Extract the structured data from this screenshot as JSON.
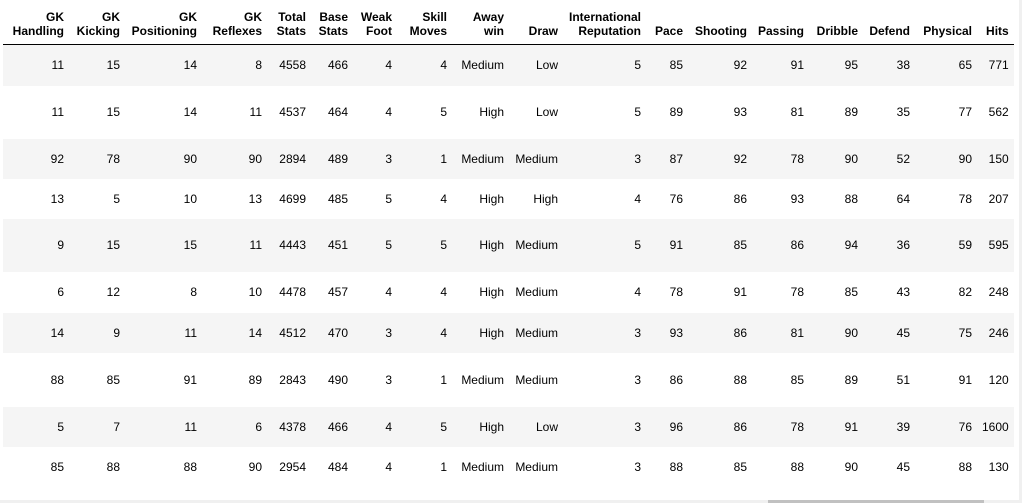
{
  "table": {
    "headers": [
      [
        "GK",
        "Handling"
      ],
      [
        "GK",
        "Kicking"
      ],
      [
        "GK",
        "Positioning"
      ],
      [
        "GK",
        "Reflexes"
      ],
      [
        "Total",
        "Stats"
      ],
      [
        "Base",
        "Stats"
      ],
      [
        "Weak",
        "Foot"
      ],
      [
        "Skill",
        "Moves"
      ],
      [
        "Away",
        "win"
      ],
      [
        "",
        "Draw"
      ],
      [
        "International",
        "Reputation"
      ],
      [
        "",
        "Pace"
      ],
      [
        "",
        "Shooting"
      ],
      [
        "",
        "Passing"
      ],
      [
        "",
        "Dribble"
      ],
      [
        "",
        "Defend"
      ],
      [
        "",
        "Physical"
      ],
      [
        "",
        "Hits"
      ]
    ],
    "rows": [
      [
        "11",
        "15",
        "14",
        "8",
        "4558",
        "466",
        "4",
        "4",
        "Medium",
        "Low",
        "5",
        "85",
        "92",
        "91",
        "95",
        "38",
        "65",
        "771"
      ],
      [
        "11",
        "15",
        "14",
        "11",
        "4537",
        "464",
        "4",
        "5",
        "High",
        "Low",
        "5",
        "89",
        "93",
        "81",
        "89",
        "35",
        "77",
        "562"
      ],
      [
        "92",
        "78",
        "90",
        "90",
        "2894",
        "489",
        "3",
        "1",
        "Medium",
        "Medium",
        "3",
        "87",
        "92",
        "78",
        "90",
        "52",
        "90",
        "150"
      ],
      [
        "13",
        "5",
        "10",
        "13",
        "4699",
        "485",
        "5",
        "4",
        "High",
        "High",
        "4",
        "76",
        "86",
        "93",
        "88",
        "64",
        "78",
        "207"
      ],
      [
        "9",
        "15",
        "15",
        "11",
        "4443",
        "451",
        "5",
        "5",
        "High",
        "Medium",
        "5",
        "91",
        "85",
        "86",
        "94",
        "36",
        "59",
        "595"
      ],
      [
        "6",
        "12",
        "8",
        "10",
        "4478",
        "457",
        "4",
        "4",
        "High",
        "Medium",
        "4",
        "78",
        "91",
        "78",
        "85",
        "43",
        "82",
        "248"
      ],
      [
        "14",
        "9",
        "11",
        "14",
        "4512",
        "470",
        "3",
        "4",
        "High",
        "Medium",
        "3",
        "93",
        "86",
        "81",
        "90",
        "45",
        "75",
        "246"
      ],
      [
        "88",
        "85",
        "91",
        "89",
        "2843",
        "490",
        "3",
        "1",
        "Medium",
        "Medium",
        "3",
        "86",
        "88",
        "85",
        "89",
        "51",
        "91",
        "120"
      ],
      [
        "5",
        "7",
        "11",
        "6",
        "4378",
        "466",
        "4",
        "5",
        "High",
        "Low",
        "3",
        "96",
        "86",
        "78",
        "91",
        "39",
        "76",
        "1600"
      ],
      [
        "85",
        "88",
        "88",
        "90",
        "2954",
        "484",
        "4",
        "1",
        "Medium",
        "Medium",
        "3",
        "88",
        "85",
        "88",
        "90",
        "45",
        "88",
        "130"
      ]
    ]
  }
}
